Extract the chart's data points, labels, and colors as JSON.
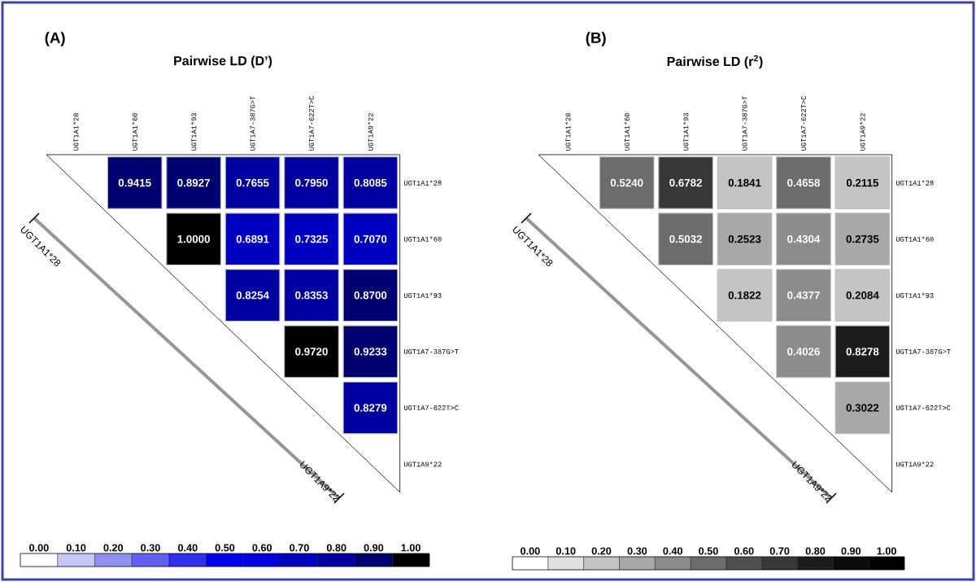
{
  "chart_data": [
    {
      "type": "heatmap",
      "title": "Pairwise LD (D’)",
      "categories": [
        "UGT1A1*28",
        "UGT1A1*60",
        "UGT1A1*93",
        "UGT1A7-387G>T",
        "UGT1A7-622T>C",
        "UGT1A9*22"
      ],
      "y_categories": [
        "UGT1A1*28",
        "UGT1A1*60",
        "UGT1A1*93",
        "UGT1A7-387G>T",
        "UGT1A7-622T>C",
        "UGT1A9*22"
      ],
      "cells": [
        [
          null,
          0.9415,
          0.8927,
          0.7655,
          0.795,
          0.8085
        ],
        [
          null,
          null,
          1.0,
          0.6891,
          0.7325,
          0.707
        ],
        [
          null,
          null,
          null,
          0.8254,
          0.8353,
          0.87
        ],
        [
          null,
          null,
          null,
          null,
          0.972,
          0.9233
        ],
        [
          null,
          null,
          null,
          null,
          null,
          0.8279
        ],
        [
          null,
          null,
          null,
          null,
          null,
          null
        ]
      ],
      "cell_labels": [
        [
          null,
          "0.9415",
          "0.8927",
          "0.7655",
          "0.7950",
          "0.8085"
        ],
        [
          null,
          null,
          "1.0000",
          "0.6891",
          "0.7325",
          "0.7070"
        ],
        [
          null,
          null,
          null,
          "0.8254",
          "0.8353",
          "0.8700"
        ],
        [
          null,
          null,
          null,
          null,
          "0.9720",
          "0.9233"
        ],
        [
          null,
          null,
          null,
          null,
          null,
          "0.8279"
        ],
        [
          null,
          null,
          null,
          null,
          null,
          null
        ]
      ],
      "colors": [
        "#ffffff",
        "#c8c8f8",
        "#9090f0",
        "#6060f0",
        "#3030f0",
        "#0000f0",
        "#0000e0",
        "#0000c0",
        "#0000a0",
        "#000070",
        "#000000"
      ],
      "clim": [
        -0.05,
        1.05
      ],
      "cticks": [
        {
          "value": 0,
          "label": "0.00"
        },
        {
          "value": 0.1,
          "label": "0.10"
        },
        {
          "value": 0.2,
          "label": "0.20"
        },
        {
          "value": 0.3,
          "label": "0.30"
        },
        {
          "value": 0.4,
          "label": "0.40"
        },
        {
          "value": 0.5,
          "label": "0.50"
        },
        {
          "value": 0.6,
          "label": "0.60"
        },
        {
          "value": 0.7,
          "label": "0.70"
        },
        {
          "value": 0.8,
          "label": "0.80"
        },
        {
          "value": 0.9,
          "label": "0.90"
        },
        {
          "value": 1,
          "label": "1.00"
        }
      ],
      "annotations": [
        "(A)",
        "UGT1A1*28",
        "UGT1A9*22"
      ]
    },
    {
      "type": "heatmap",
      "title": "Pairwise LD (r$^{2}$)",
      "categories": [
        "UGT1A1*28",
        "UGT1A1*60",
        "UGT1A1*93",
        "UGT1A7-387G>T",
        "UGT1A7-622T>C",
        "UGT1A9*22"
      ],
      "y_categories": [
        "UGT1A1*28",
        "UGT1A1*60",
        "UGT1A1*93",
        "UGT1A7-387G>T",
        "UGT1A7-622T>C",
        "UGT1A9*22"
      ],
      "cells": [
        [
          null,
          0.524,
          0.6782,
          0.1841,
          0.4658,
          0.2115
        ],
        [
          null,
          null,
          0.5032,
          0.2523,
          0.4304,
          0.2735
        ],
        [
          null,
          null,
          null,
          0.1822,
          0.4377,
          0.2084
        ],
        [
          null,
          null,
          null,
          null,
          0.4026,
          0.8278
        ],
        [
          null,
          null,
          null,
          null,
          null,
          0.3022
        ],
        [
          null,
          null,
          null,
          null,
          null,
          null
        ]
      ],
      "cell_labels": [
        [
          null,
          "0.5240",
          "0.6782",
          "0.1841",
          "0.4658",
          "0.2115"
        ],
        [
          null,
          null,
          "0.5032",
          "0.2523",
          "0.4304",
          "0.2735"
        ],
        [
          null,
          null,
          null,
          "0.1822",
          "0.4377",
          "0.2084"
        ],
        [
          null,
          null,
          null,
          null,
          "0.4026",
          "0.8278"
        ],
        [
          null,
          null,
          null,
          null,
          null,
          "0.3022"
        ],
        [
          null,
          null,
          null,
          null,
          null,
          null
        ]
      ],
      "colors": [
        "#ffffff",
        "#e0e0e0",
        "#c4c4c4",
        "#a8a8a8",
        "#8c8c8c",
        "#6c6c6c",
        "#505050",
        "#383838",
        "#1c1c1c",
        "#0c0c0c",
        "#000000"
      ],
      "clim": [
        -0.05,
        1.05
      ],
      "cticks": [
        {
          "value": 0,
          "label": "0.00"
        },
        {
          "value": 0.1,
          "label": "0.10"
        },
        {
          "value": 0.2,
          "label": "0.20"
        },
        {
          "value": 0.3,
          "label": "0.30"
        },
        {
          "value": 0.4,
          "label": "0.40"
        },
        {
          "value": 0.5,
          "label": "0.50"
        },
        {
          "value": 0.6,
          "label": "0.60"
        },
        {
          "value": 0.7,
          "label": "0.70"
        },
        {
          "value": 0.8,
          "label": "0.80"
        },
        {
          "value": 0.9,
          "label": "0.90"
        },
        {
          "value": 1,
          "label": "1.00"
        }
      ],
      "annotations": [
        "(B)",
        "UGT1A1*28",
        "UGT1A9*22"
      ]
    }
  ]
}
